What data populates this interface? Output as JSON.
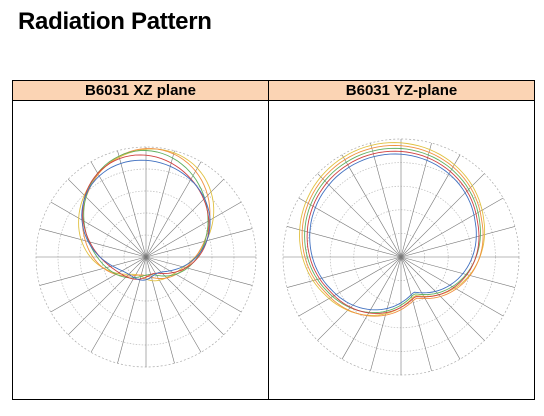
{
  "header": {
    "title": "Radiation Pattern"
  },
  "table": {
    "columns": [
      "B6031 XZ plane",
      "B6031 YZ-plane"
    ]
  }
}
